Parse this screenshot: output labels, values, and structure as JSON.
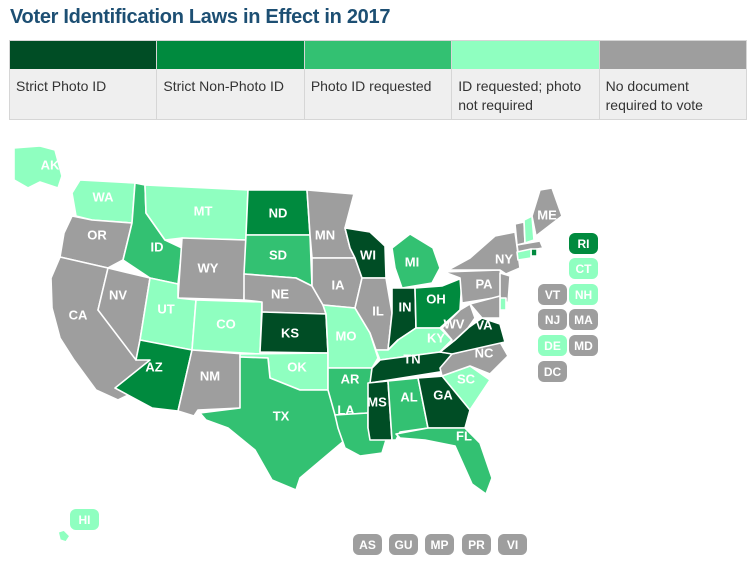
{
  "title": "Voter Identification Laws in Effect in 2017",
  "legend": [
    {
      "label": "Strict Photo ID",
      "color": "#004d25"
    },
    {
      "label": "Strict Non-Photo ID",
      "color": "#008a3e"
    },
    {
      "label": "Photo ID requested",
      "color": "#33c172"
    },
    {
      "label": "ID requested; photo not required",
      "color": "#8fffc0"
    },
    {
      "label": "No document required to vote",
      "color": "#9e9e9e"
    }
  ],
  "states": {
    "AK": "ID requested; photo not required",
    "HI": "ID requested; photo not required",
    "WA": "ID requested; photo not required",
    "OR": "No document required to vote",
    "CA": "No document required to vote",
    "NV": "No document required to vote",
    "ID": "Photo ID requested",
    "MT": "ID requested; photo not required",
    "WY": "No document required to vote",
    "UT": "ID requested; photo not required",
    "CO": "ID requested; photo not required",
    "AZ": "Strict Non-Photo ID",
    "NM": "No document required to vote",
    "ND": "Strict Non-Photo ID",
    "SD": "Photo ID requested",
    "NE": "No document required to vote",
    "KS": "Strict Photo ID",
    "OK": "ID requested; photo not required",
    "TX": "Photo ID requested",
    "MN": "No document required to vote",
    "IA": "No document required to vote",
    "MO": "ID requested; photo not required",
    "AR": "Photo ID requested",
    "LA": "Photo ID requested",
    "WI": "Strict Photo ID",
    "IL": "No document required to vote",
    "MI": "Photo ID requested",
    "IN": "Strict Photo ID",
    "OH": "Strict Non-Photo ID",
    "KY": "ID requested; photo not required",
    "TN": "Strict Photo ID",
    "MS": "Strict Photo ID",
    "AL": "Photo ID requested",
    "GA": "Strict Photo ID",
    "FL": "Photo ID requested",
    "SC": "ID requested; photo not required",
    "NC": "No document required to vote",
    "VA": "Strict Photo ID",
    "WV": "No document required to vote",
    "PA": "No document required to vote",
    "NY": "No document required to vote",
    "ME": "No document required to vote",
    "VT": "No document required to vote",
    "NH": "ID requested; photo not required",
    "MA": "No document required to vote",
    "RI": "Strict Non-Photo ID",
    "CT": "ID requested; photo not required",
    "NJ": "No document required to vote",
    "DE": "ID requested; photo not required",
    "MD": "No document required to vote",
    "DC": "No document required to vote"
  },
  "territories": [
    "AS",
    "GU",
    "MP",
    "PR",
    "VI"
  ]
}
